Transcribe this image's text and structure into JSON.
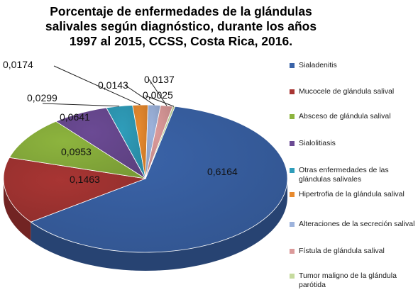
{
  "chart_data": {
    "type": "pie",
    "title_lines": [
      "Porcentaje  de enfermedades de la  glándulas",
      "salivales según diagnóstico, durante los años",
      "1997 al 2015,  CCSS, Costa Rica, 2016."
    ],
    "categories": [
      "Sialadenitis",
      "Mucocele de glándula salival",
      "Absceso de glándula salival",
      "Sialolitiasis",
      "Otras enfermedades de las glándulas salivales",
      "Hipertrofia de la glándula salival",
      "Alteraciones de la secreción salival",
      "Fístula de glándula salival",
      "Tumor maligno  de la glándula parótida"
    ],
    "values": [
      0.6164,
      0.1463,
      0.0953,
      0.0641,
      0.0299,
      0.0174,
      0.0143,
      0.0137,
      0.0025
    ],
    "data_labels": [
      "0,6164",
      "0,1463",
      "0,0953",
      "0,0641",
      "0,0299",
      "0,0174",
      "0,0143",
      "0,0137",
      "0,0025"
    ],
    "colors": [
      "#3A63A8",
      "#A83533",
      "#8DB43E",
      "#6B4A94",
      "#2F9DBA",
      "#E88A2E",
      "#9DB3DC",
      "#DB9A9A",
      "#C6DB9E"
    ],
    "legend_position": "right"
  }
}
